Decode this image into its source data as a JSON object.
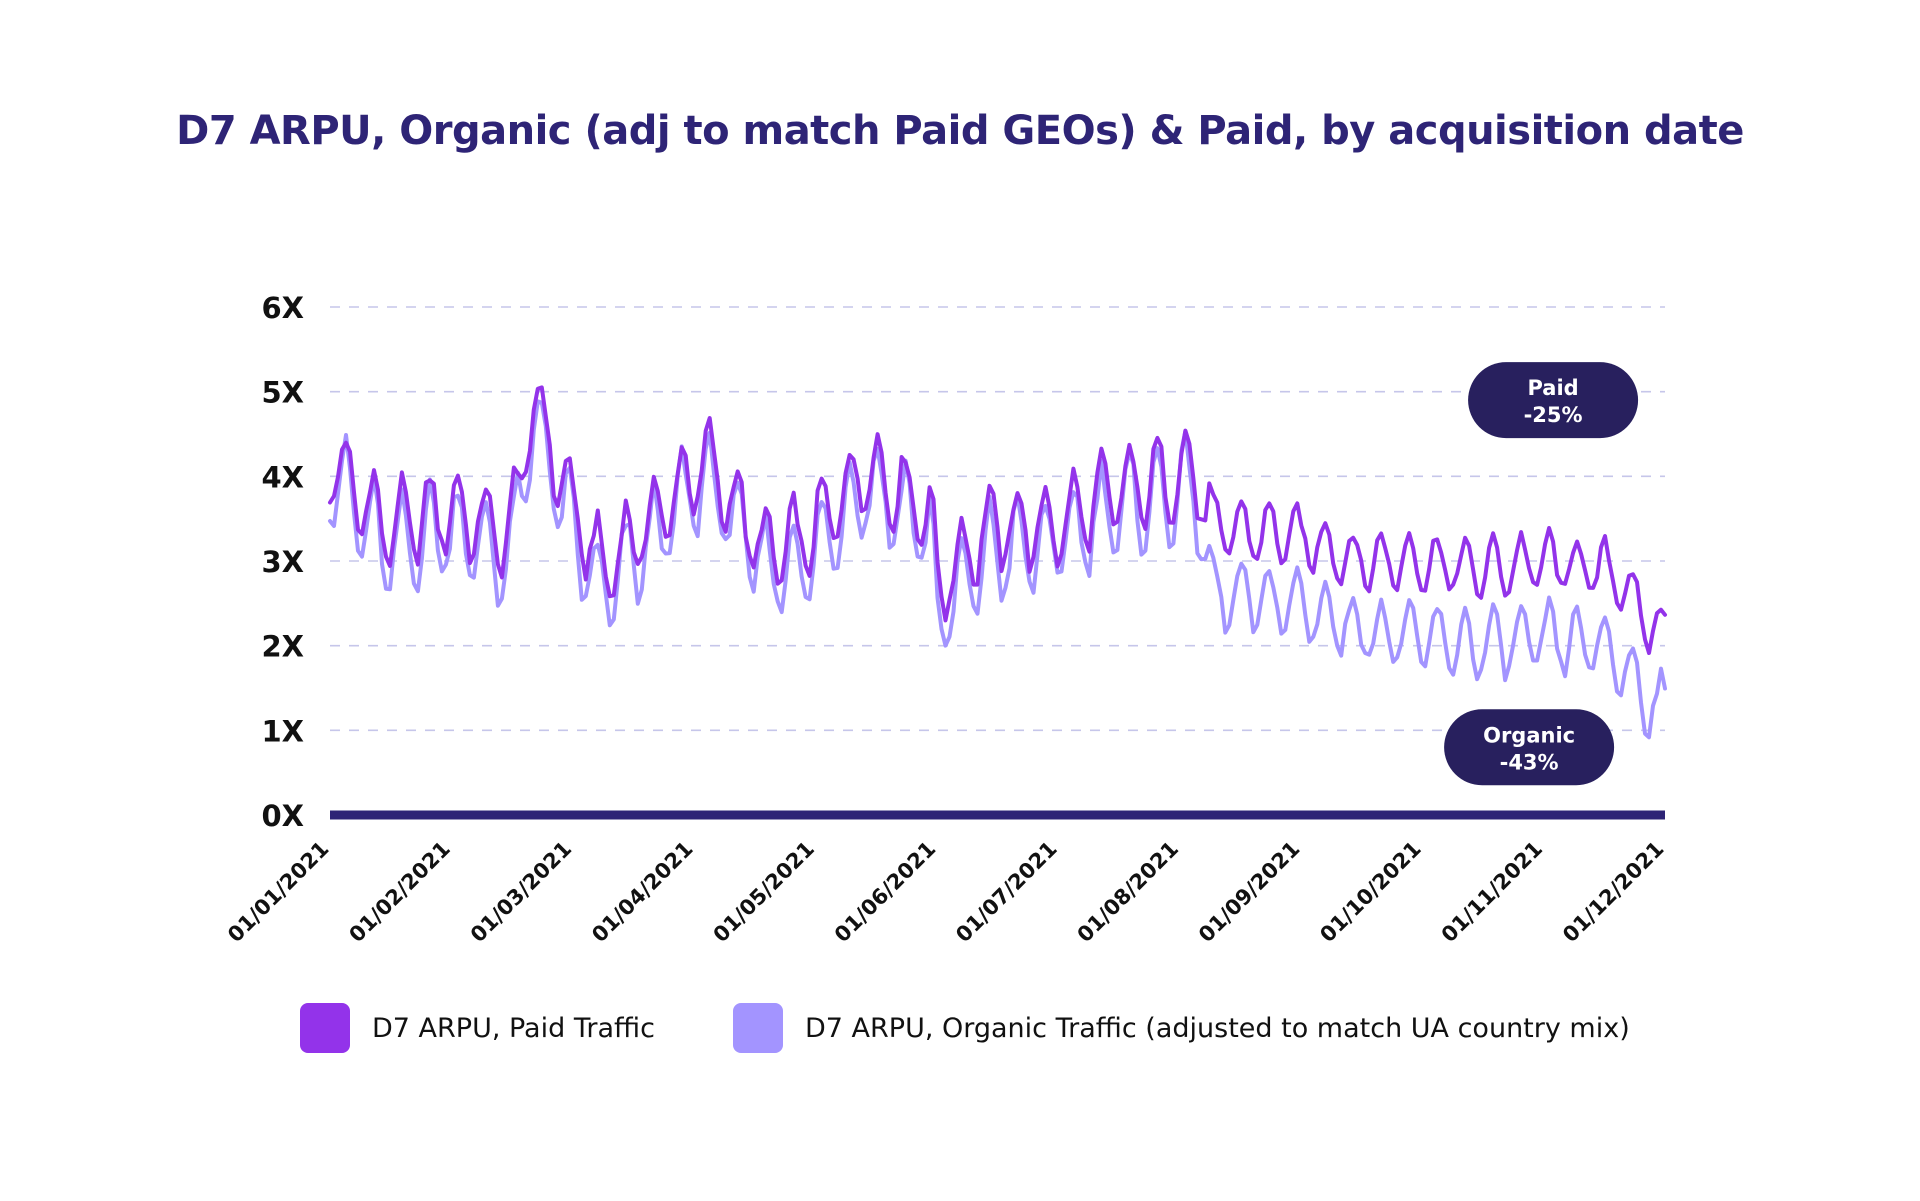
{
  "chart_data": {
    "type": "line",
    "title": "D7 ARPU, Organic (adj to match Paid GEOs) & Paid, by acquisition date",
    "y_ticks": [
      "0X",
      "1X",
      "2X",
      "3X",
      "4X",
      "5X",
      "6X"
    ],
    "x_ticks": [
      "01/01/2021",
      "01/02/2021",
      "01/03/2021",
      "01/04/2021",
      "01/05/2021",
      "01/06/2021",
      "01/07/2021",
      "01/08/2021",
      "01/09/2021",
      "01/10/2021",
      "01/11/2021",
      "01/12/2021"
    ],
    "x_range": [
      "2021-01-01",
      "2021-12-01"
    ],
    "ylim": [
      0,
      6
    ],
    "grid": true,
    "legend_position": "bottom",
    "series": [
      {
        "name": "D7 ARPU, Paid Traffic",
        "color": "#9333ea",
        "keyframes": [
          {
            "x": "2021-01-01",
            "y": 4.2
          },
          {
            "x": "2021-01-15",
            "y": 3.4
          },
          {
            "x": "2021-01-31",
            "y": 3.6
          },
          {
            "x": "2021-02-15",
            "y": 3.3
          },
          {
            "x": "2021-02-21",
            "y": 4.9
          },
          {
            "x": "2021-03-03",
            "y": 3.6
          },
          {
            "x": "2021-03-10",
            "y": 2.9
          },
          {
            "x": "2021-03-25",
            "y": 3.6
          },
          {
            "x": "2021-04-05",
            "y": 4.2
          },
          {
            "x": "2021-04-20",
            "y": 3.1
          },
          {
            "x": "2021-05-01",
            "y": 3.3
          },
          {
            "x": "2021-05-15",
            "y": 4.1
          },
          {
            "x": "2021-05-31",
            "y": 3.6
          },
          {
            "x": "2021-06-02",
            "y": 2.7
          },
          {
            "x": "2021-06-15",
            "y": 3.4
          },
          {
            "x": "2021-07-01",
            "y": 3.4
          },
          {
            "x": "2021-07-15",
            "y": 3.8
          },
          {
            "x": "2021-08-01",
            "y": 4.0
          },
          {
            "x": "2021-08-05",
            "y": 4.1
          },
          {
            "x": "2021-08-10",
            "y": 3.4
          },
          {
            "x": "2021-08-31",
            "y": 3.3
          },
          {
            "x": "2021-09-15",
            "y": 3.0
          },
          {
            "x": "2021-10-01",
            "y": 3.0
          },
          {
            "x": "2021-10-15",
            "y": 2.9
          },
          {
            "x": "2021-11-01",
            "y": 3.0
          },
          {
            "x": "2021-11-15",
            "y": 2.9
          },
          {
            "x": "2021-11-20",
            "y": 2.8
          },
          {
            "x": "2021-11-26",
            "y": 2.3
          },
          {
            "x": "2021-12-01",
            "y": 2.1
          }
        ]
      },
      {
        "name": "D7 ARPU, Organic Traffic (adjusted to match UA country mix)",
        "color": "#a394ff",
        "keyframes": [
          {
            "x": "2021-01-01",
            "y": 4.1
          },
          {
            "x": "2021-01-15",
            "y": 3.1
          },
          {
            "x": "2021-01-31",
            "y": 3.4
          },
          {
            "x": "2021-02-15",
            "y": 3.0
          },
          {
            "x": "2021-02-21",
            "y": 4.7
          },
          {
            "x": "2021-03-03",
            "y": 3.3
          },
          {
            "x": "2021-03-10",
            "y": 2.6
          },
          {
            "x": "2021-03-25",
            "y": 3.4
          },
          {
            "x": "2021-04-05",
            "y": 4.0
          },
          {
            "x": "2021-04-20",
            "y": 2.9
          },
          {
            "x": "2021-05-01",
            "y": 3.0
          },
          {
            "x": "2021-05-15",
            "y": 3.9
          },
          {
            "x": "2021-05-31",
            "y": 3.4
          },
          {
            "x": "2021-06-02",
            "y": 2.3
          },
          {
            "x": "2021-06-15",
            "y": 3.1
          },
          {
            "x": "2021-07-01",
            "y": 3.2
          },
          {
            "x": "2021-07-15",
            "y": 3.6
          },
          {
            "x": "2021-08-01",
            "y": 3.8
          },
          {
            "x": "2021-08-05",
            "y": 3.9
          },
          {
            "x": "2021-08-10",
            "y": 2.6
          },
          {
            "x": "2021-08-31",
            "y": 2.5
          },
          {
            "x": "2021-09-15",
            "y": 2.2
          },
          {
            "x": "2021-10-01",
            "y": 2.1
          },
          {
            "x": "2021-10-15",
            "y": 2.0
          },
          {
            "x": "2021-11-01",
            "y": 2.1
          },
          {
            "x": "2021-11-15",
            "y": 2.0
          },
          {
            "x": "2021-11-20",
            "y": 1.8
          },
          {
            "x": "2021-11-26",
            "y": 1.4
          },
          {
            "x": "2021-12-01",
            "y": 1.2
          }
        ]
      }
    ],
    "annotations": [
      {
        "name": "paid",
        "line1": "Paid",
        "line2": "-25%",
        "x": "2021-11-03",
        "y": 4.9
      },
      {
        "name": "organic",
        "line1": "Organic",
        "line2": "-43%",
        "x": "2021-10-28",
        "y": 0.8
      }
    ]
  },
  "colors": {
    "title": "#2e2476",
    "axis": "#2e2476",
    "grid": "#c6c6ea",
    "annotation_bg": "#28205e",
    "annotation_text": "#ffffff"
  }
}
